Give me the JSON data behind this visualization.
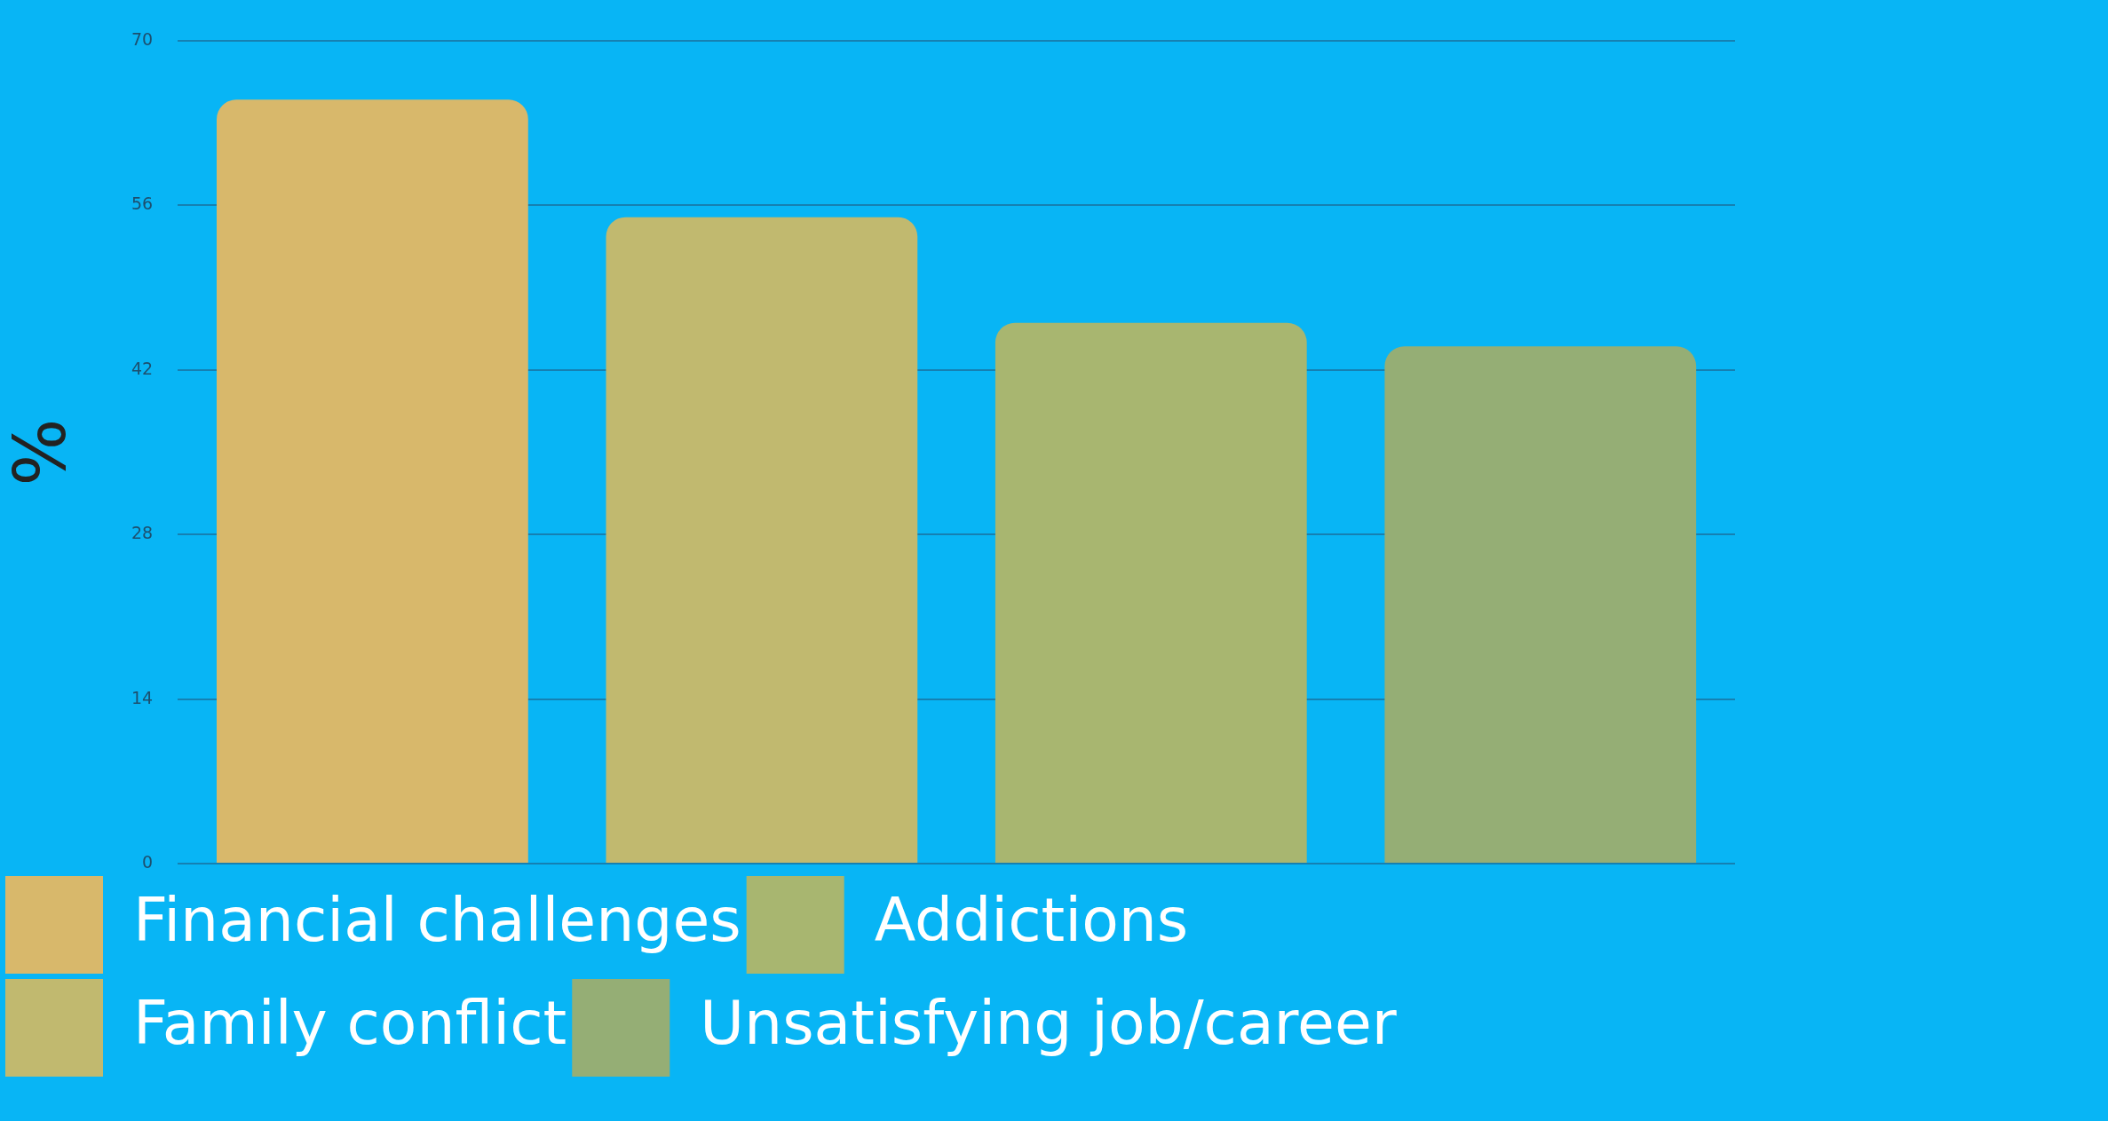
{
  "chart_data": {
    "type": "bar",
    "ylabel": "%",
    "categories": [
      null
    ],
    "series": [
      {
        "name": "Financial challenges",
        "color": "#d8b86b",
        "values": [
          65
        ]
      },
      {
        "name": "Family conflict",
        "color": "#c1b96f",
        "values": [
          55
        ]
      },
      {
        "name": "Addictions",
        "color": "#a8b670",
        "values": [
          46
        ]
      },
      {
        "name": "Unsatisfying job/career",
        "color": "#95ae75",
        "values": [
          44
        ]
      }
    ],
    "ylim": [
      0,
      70
    ],
    "yticks": [
      0,
      14,
      28,
      42,
      56,
      70
    ],
    "grid": "y",
    "legend": "bottom",
    "tick_labels": "y"
  }
}
